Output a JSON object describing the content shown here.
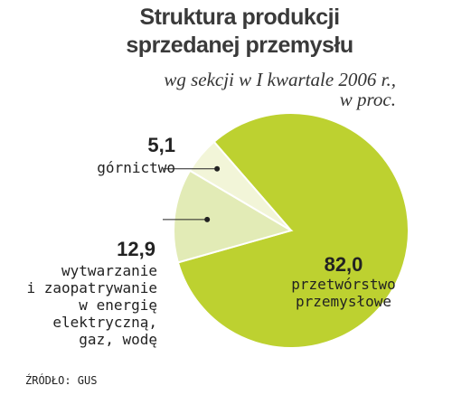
{
  "chart_data": {
    "type": "pie",
    "title": "Struktura produkcji sprzedanej przemysłu",
    "subtitle": [
      "wg sekcji w I kwartale 2006 r.,",
      "w proc."
    ],
    "slices": [
      {
        "value": 82.0,
        "value_label": "82,0",
        "label_lines": [
          "przetwórstwo",
          "przemysłowe"
        ],
        "color": "#bdd130"
      },
      {
        "value": 12.9,
        "value_label": "12,9",
        "label_lines": [
          "wytwarzanie",
          "i zaopatrywanie",
          "w energię",
          "elektryczną,",
          "gaz, wodę"
        ],
        "color": "#e2ebb6"
      },
      {
        "value": 5.1,
        "value_label": "5,1",
        "label_lines": [
          "górnictwo"
        ],
        "color": "#f2f5d8"
      }
    ]
  },
  "title_lines": [
    "Struktura produkcji",
    "sprzedanej przemysłu"
  ],
  "source": "ŹRÓDŁO: GUS",
  "colors": {
    "background": "#ffffff",
    "leader": "#222222"
  }
}
